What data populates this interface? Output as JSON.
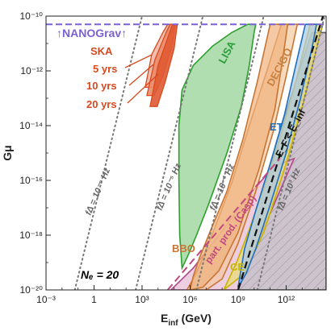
{
  "chart_data": {
    "type": "area",
    "xlabel_main": "E",
    "xlabel_sub": "inf",
    "xlabel_unit": "(GeV)",
    "ylabel": "Gμ",
    "x_scale": "log10",
    "y_scale": "log10",
    "xlim_log10": [
      -3,
      14.5
    ],
    "ylim_log10": [
      -20,
      -10
    ],
    "x_ticks": [
      {
        "log": -3,
        "label": "10⁻³"
      },
      {
        "log": 0,
        "label": "1"
      },
      {
        "log": 3,
        "label": "10³"
      },
      {
        "log": 6,
        "label": "10⁶"
      },
      {
        "log": 9,
        "label": "10⁹"
      },
      {
        "log": 12,
        "label": "10¹²"
      }
    ],
    "y_ticks": [
      {
        "log": -10,
        "label": "10⁻¹⁰"
      },
      {
        "log": -12,
        "label": "10⁻¹²"
      },
      {
        "log": -14,
        "label": "10⁻¹⁴"
      },
      {
        "log": -16,
        "label": "10⁻¹⁶"
      },
      {
        "log": -18,
        "label": "10⁻¹⁸"
      },
      {
        "log": -20,
        "label": "10⁻²⁰"
      }
    ],
    "grid": false,
    "regions": [
      {
        "name": "LISA",
        "color": "#2ca02c",
        "fill": "#8fd08f",
        "polygon": [
          [
            5.5,
            -19.2
          ],
          [
            5.9,
            -18.7
          ],
          [
            6.4,
            -18.0
          ],
          [
            7.2,
            -16.8
          ],
          [
            8.3,
            -15.0
          ],
          [
            9.2,
            -13.3
          ],
          [
            9.7,
            -11.8
          ],
          [
            10.0,
            -10.6
          ],
          [
            10.1,
            -10.3
          ],
          [
            9.6,
            -10.3
          ],
          [
            8.6,
            -10.6
          ],
          [
            7.4,
            -11.1
          ],
          [
            6.2,
            -11.8
          ],
          [
            5.5,
            -12.7
          ],
          [
            5.3,
            -14.0
          ],
          [
            5.3,
            -16.0
          ],
          [
            5.35,
            -18.0
          ]
        ]
      },
      {
        "name": "DECIGO",
        "color": "#c87533",
        "fill": "#f0b27c",
        "polygon": [
          [
            6.0,
            -20.0
          ],
          [
            6.8,
            -19.9
          ],
          [
            7.8,
            -19.3
          ],
          [
            9.0,
            -17.9
          ],
          [
            10.3,
            -15.6
          ],
          [
            11.3,
            -13.4
          ],
          [
            11.8,
            -11.5
          ],
          [
            12.1,
            -10.3
          ],
          [
            11.0,
            -10.3
          ],
          [
            10.2,
            -12.4
          ],
          [
            9.3,
            -14.5
          ],
          [
            8.3,
            -16.4
          ],
          [
            7.3,
            -17.8
          ],
          [
            6.6,
            -18.8
          ],
          [
            6.2,
            -19.5
          ]
        ]
      },
      {
        "name": "ET",
        "color": "#1f6fbf",
        "fill": "#a9c9ea",
        "polygon": [
          [
            9.0,
            -19.9
          ],
          [
            9.5,
            -19.4
          ],
          [
            10.1,
            -18.5
          ],
          [
            11.0,
            -16.9
          ],
          [
            12.0,
            -15.0
          ],
          [
            12.9,
            -13.0
          ],
          [
            13.6,
            -11.2
          ],
          [
            13.9,
            -10.3
          ],
          [
            13.2,
            -10.3
          ],
          [
            12.6,
            -11.8
          ],
          [
            11.9,
            -13.6
          ],
          [
            11.0,
            -15.4
          ],
          [
            10.1,
            -17.1
          ],
          [
            9.4,
            -18.5
          ]
        ]
      },
      {
        "name": "CE",
        "color": "#c8b400",
        "fill": "#e8dd73",
        "polygon": [
          [
            8.1,
            -20.0
          ],
          [
            9.4,
            -19.4
          ],
          [
            10.6,
            -17.9
          ],
          [
            12.0,
            -15.4
          ],
          [
            13.2,
            -12.9
          ],
          [
            14.1,
            -10.7
          ],
          [
            14.3,
            -10.3
          ],
          [
            13.5,
            -10.3
          ],
          [
            12.6,
            -12.4
          ],
          [
            11.6,
            -14.5
          ],
          [
            10.6,
            -16.3
          ],
          [
            9.7,
            -17.8
          ],
          [
            8.9,
            -19.0
          ]
        ]
      },
      {
        "name": "BBO",
        "color": "#c87533",
        "fill": "#f4c9a0",
        "polygon": [
          [
            5.8,
            -20.0
          ],
          [
            7.0,
            -20.0
          ],
          [
            8.0,
            -19.6
          ],
          [
            9.0,
            -18.3
          ],
          [
            10.1,
            -16.4
          ],
          [
            11.2,
            -14.2
          ],
          [
            12.0,
            -12.2
          ],
          [
            12.7,
            -10.3
          ],
          [
            11.7,
            -10.3
          ],
          [
            10.8,
            -12.0
          ],
          [
            9.7,
            -14.0
          ],
          [
            8.6,
            -16.1
          ],
          [
            7.5,
            -17.8
          ],
          [
            6.6,
            -19.1
          ],
          [
            6.1,
            -19.7
          ]
        ]
      },
      {
        "name": "particle production (Casp)",
        "color": "#b04a8a",
        "fill": "#e6b8d3",
        "polygon": [
          [
            4.8,
            -20.0
          ],
          [
            9.0,
            -20.0
          ],
          [
            11.0,
            -17.2
          ],
          [
            12.5,
            -15.2
          ],
          [
            11.2,
            -15.5
          ],
          [
            9.6,
            -16.6
          ],
          [
            7.8,
            -18.0
          ],
          [
            6.2,
            -19.2
          ]
        ]
      },
      {
        "name": "E_F < E_inf excluded",
        "color": "#555555",
        "fill": "#b7aab8",
        "polygon": [
          [
            9.0,
            -20.0
          ],
          [
            14.5,
            -20.0
          ],
          [
            14.5,
            -10.6
          ],
          [
            13.6,
            -10.6
          ],
          [
            12.5,
            -12.6
          ],
          [
            11.4,
            -14.6
          ],
          [
            10.3,
            -17.2
          ]
        ]
      }
    ],
    "ska": {
      "label": "SKA",
      "color": "#d64a1e",
      "bands": [
        {
          "label": "5 yrs",
          "fill": "#f3b6a4",
          "polygon": [
            [
              3.2,
              -12.6
            ],
            [
              3.6,
              -11.4
            ],
            [
              4.3,
              -10.6
            ],
            [
              4.6,
              -10.3
            ],
            [
              4.95,
              -10.3
            ],
            [
              4.8,
              -11.0
            ],
            [
              4.3,
              -11.9
            ],
            [
              3.7,
              -12.6
            ]
          ]
        },
        {
          "label": "10 yrs",
          "fill": "#ec8b6c",
          "polygon": [
            [
              3.3,
              -12.9
            ],
            [
              3.8,
              -11.6
            ],
            [
              4.5,
              -10.6
            ],
            [
              4.75,
              -10.3
            ],
            [
              5.05,
              -10.3
            ],
            [
              4.9,
              -11.0
            ],
            [
              4.3,
              -12.2
            ],
            [
              3.75,
              -12.9
            ]
          ]
        },
        {
          "label": "20 yrs",
          "fill": "#e05a32",
          "polygon": [
            [
              3.5,
              -13.3
            ],
            [
              4.0,
              -11.8
            ],
            [
              4.6,
              -10.8
            ],
            [
              4.9,
              -10.3
            ],
            [
              5.2,
              -10.3
            ],
            [
              5.0,
              -11.2
            ],
            [
              4.45,
              -12.4
            ],
            [
              3.95,
              -13.3
            ]
          ]
        }
      ]
    },
    "nanograv": {
      "label": "↑NANOGrav↑",
      "color": "#7b61d6",
      "ylog": -10.3
    },
    "dotted_lines": [
      {
        "label": "fΔ = 10⁻⁹ Hz",
        "points": [
          [
            -1.2,
            -20.0
          ],
          [
            3.0,
            -10.0
          ]
        ]
      },
      {
        "label": "fΔ = 10⁻⁵ Hz",
        "points": [
          [
            2.6,
            -20.0
          ],
          [
            6.8,
            -10.0
          ]
        ]
      },
      {
        "label": "fΔ = 10⁻¹ Hz",
        "points": [
          [
            6.4,
            -20.0
          ],
          [
            10.6,
            -10.0
          ]
        ]
      },
      {
        "label": "fΔ = 10³ Hz",
        "points": [
          [
            10.2,
            -20.0
          ],
          [
            14.4,
            -10.0
          ]
        ]
      }
    ],
    "dashed_black": {
      "label": "E_F < E_inf",
      "points": [
        [
          9.0,
          -20.0
        ],
        [
          14.3,
          -10.0
        ]
      ]
    },
    "dashed_pink": {
      "label": "part. prod. (Casp)",
      "color": "#c0487f",
      "points": [
        [
          4.6,
          -20.0
        ],
        [
          11.6,
          -15.2
        ]
      ]
    },
    "ne_label": "Nₑ = 20",
    "annotations": [
      {
        "text": "LISA",
        "color": "#2a9d3a"
      },
      {
        "text": "DECIGO",
        "color": "#c8813f"
      },
      {
        "text": "ET",
        "color": "#1f6fbf"
      },
      {
        "text": "BBO",
        "color": "#c87533"
      },
      {
        "text": "CE",
        "color": "#c9b800"
      },
      {
        "text": "SKA",
        "color": "#d64a1e"
      },
      {
        "text": "5 yrs",
        "color": "#d64a1e"
      },
      {
        "text": "10 yrs",
        "color": "#d64a1e"
      },
      {
        "text": "20 yrs",
        "color": "#d64a1e"
      },
      {
        "text": "↑NANOGrav↑",
        "color": "#7b61d6"
      },
      {
        "text": "Nₑ = 20",
        "color": "#000000"
      },
      {
        "text": "part. prod. (Casp)",
        "color": "#c0487f"
      },
      {
        "text": "E_F < E_inf",
        "color": "#111111"
      }
    ]
  }
}
